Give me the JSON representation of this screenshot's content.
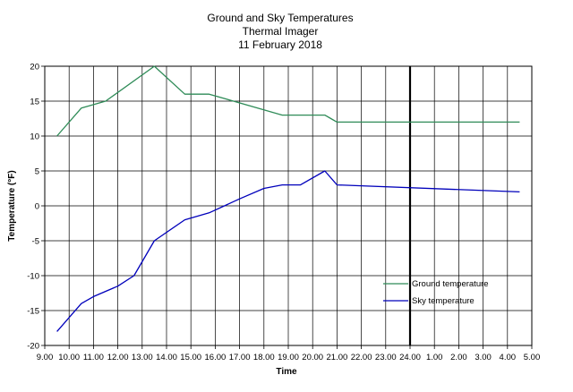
{
  "chart_data": {
    "type": "line",
    "title": [
      "Ground and Sky Temperatures",
      "Thermal Imager",
      "11 February 2018"
    ],
    "xlabel": "Time",
    "ylabel": "Temperature (°F)",
    "x_ticks": [
      "9.00",
      "10.00",
      "11.00",
      "12.00",
      "13.00",
      "14.00",
      "15.00",
      "16.00",
      "17.00",
      "18.00",
      "19.00",
      "20.00",
      "21.00",
      "22.00",
      "23.00",
      "24.00",
      "1.00",
      "2.00",
      "3.00",
      "4.00",
      "5.00"
    ],
    "y_ticks": [
      "20",
      "15",
      "10",
      "5",
      "0",
      "-5",
      "-10",
      "-15",
      "-20"
    ],
    "xlim": [
      "9.00",
      "5.00"
    ],
    "ylim": [
      -20,
      20
    ],
    "grid": true,
    "legend_position": "lower-right",
    "vertical_marker": "24.00",
    "series": [
      {
        "name": "Ground temperature",
        "color": "#2e8b57",
        "x": [
          "9.30",
          "10.30",
          "11.30",
          "13.30",
          "14.45",
          "15.45",
          "18.45",
          "20.30",
          "20.45",
          "21.00",
          "4.30"
        ],
        "y": [
          10,
          14,
          15,
          20,
          16,
          16,
          13,
          13,
          12.5,
          12,
          12
        ]
      },
      {
        "name": "Sky temperature",
        "color": "#0000bb",
        "x": [
          "9.30",
          "10.30",
          "11.00",
          "12.00",
          "12.40",
          "13.30",
          "14.45",
          "15.45",
          "17.00",
          "18.00",
          "18.45",
          "19.30",
          "20.30",
          "21.00",
          "4.30"
        ],
        "y": [
          -18,
          -14,
          -13,
          -11.5,
          -10,
          -5,
          -2,
          -1,
          1,
          2.5,
          3,
          3,
          5,
          3,
          2
        ]
      }
    ]
  }
}
